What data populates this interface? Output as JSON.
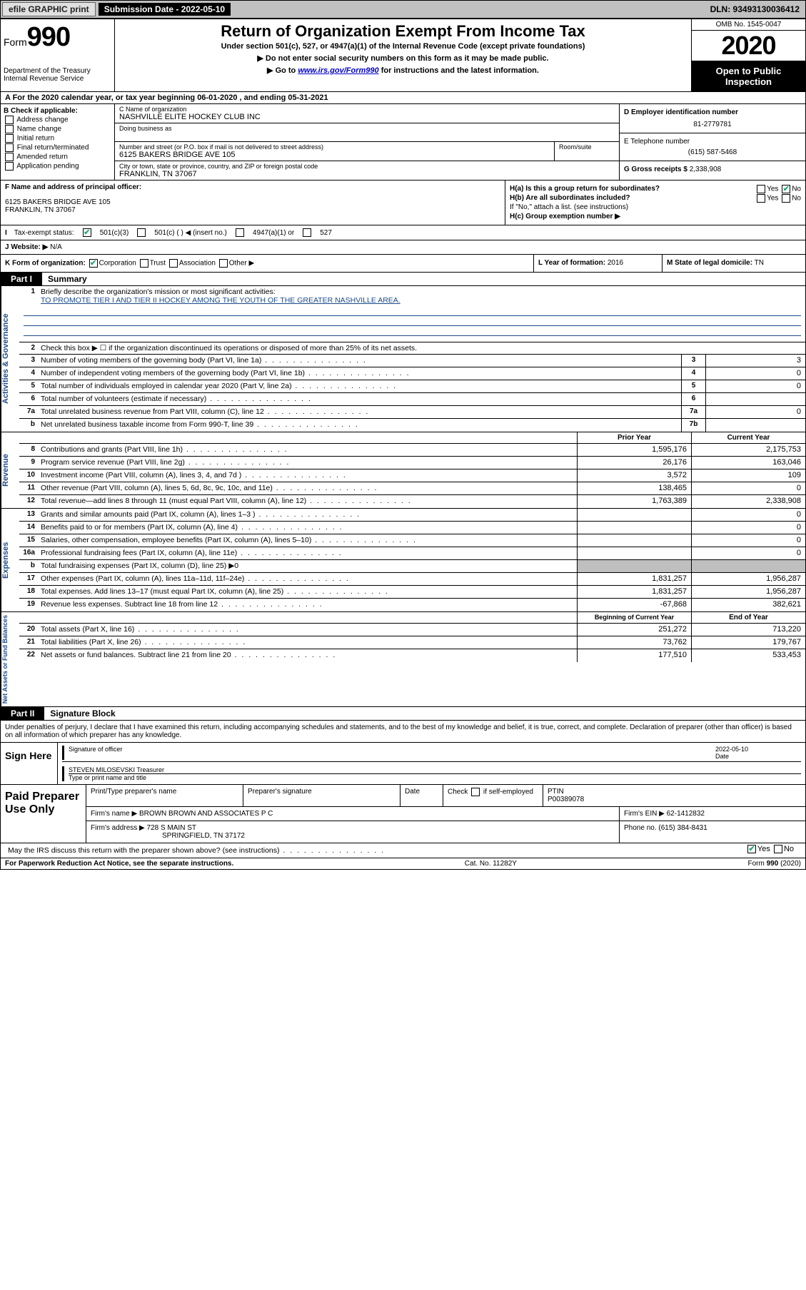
{
  "topbar": {
    "efile": "efile GRAPHIC print",
    "subdate_label": "Submission Date - 2022-05-10",
    "dln": "DLN: 93493130036412"
  },
  "header": {
    "form_label": "Form",
    "form_num": "990",
    "dept": "Department of the Treasury\nInternal Revenue Service",
    "title": "Return of Organization Exempt From Income Tax",
    "sub1": "Under section 501(c), 527, or 4947(a)(1) of the Internal Revenue Code (except private foundations)",
    "sub2": "▶ Do not enter social security numbers on this form as it may be made public.",
    "sub3_pre": "▶ Go to ",
    "sub3_link": "www.irs.gov/Form990",
    "sub3_post": " for instructions and the latest information.",
    "omb": "OMB No. 1545-0047",
    "year": "2020",
    "openpub": "Open to Public Inspection"
  },
  "rowA": "A For the 2020 calendar year, or tax year beginning 06-01-2020    , and ending 05-31-2021",
  "boxB": {
    "label": "B Check if applicable:",
    "opts": [
      "Address change",
      "Name change",
      "Initial return",
      "Final return/terminated",
      "Amended return",
      "Application pending"
    ]
  },
  "boxC": {
    "name_label": "C Name of organization",
    "name": "NASHVILLE ELITE HOCKEY CLUB INC",
    "dba_label": "Doing business as",
    "dba": "",
    "addr_label": "Number and street (or P.O. box if mail is not delivered to street address)",
    "room_label": "Room/suite",
    "addr": "6125 BAKERS BRIDGE AVE 105",
    "city_label": "City or town, state or province, country, and ZIP or foreign postal code",
    "city": "FRANKLIN, TN  37067"
  },
  "boxD": {
    "ein_label": "D Employer identification number",
    "ein": "81-2779781",
    "phone_label": "E Telephone number",
    "phone": "(615) 587-5468",
    "gross_label": "G Gross receipts $",
    "gross": "2,338,908"
  },
  "boxF": {
    "label": "F  Name and address of principal officer:",
    "addr1": "6125 BAKERS BRIDGE AVE 105",
    "addr2": "FRANKLIN, TN  37067"
  },
  "boxH": {
    "a": "H(a)  Is this a group return for subordinates?",
    "b": "H(b)  Are all subordinates included?",
    "bnote": "If \"No,\" attach a list. (see instructions)",
    "c": "H(c)  Group exemption number ▶",
    "yes": "Yes",
    "no": "No"
  },
  "rowI": {
    "label": "Tax-exempt status:",
    "o1": "501(c)(3)",
    "o2": "501(c) (   ) ◀ (insert no.)",
    "o3": "4947(a)(1) or",
    "o4": "527"
  },
  "rowJ": {
    "label": "J   Website: ▶",
    "val": "N/A"
  },
  "rowK": {
    "label": "K Form of organization:",
    "opts": [
      "Corporation",
      "Trust",
      "Association",
      "Other ▶"
    ],
    "l_label": "L Year of formation:",
    "l_val": "2016",
    "m_label": "M State of legal domicile:",
    "m_val": "TN"
  },
  "partI": {
    "tab": "Part I",
    "title": "Summary"
  },
  "summary": {
    "side1": "Activities & Governance",
    "side2": "Revenue",
    "side3": "Expenses",
    "side4": "Net Assets or Fund Balances",
    "l1_label": "Briefly describe the organization's mission or most significant activities:",
    "l1_val": "TO PROMOTE TIER I AND TIER II HOCKEY AMONG THE YOUTH OF THE GREATER NASHVILLE AREA.",
    "l2": "Check this box ▶ ☐  if the organization discontinued its operations or disposed of more than 25% of its net assets.",
    "l3": "Number of voting members of the governing body (Part VI, line 1a)",
    "l3v": "3",
    "l4": "Number of independent voting members of the governing body (Part VI, line 1b)",
    "l4v": "0",
    "l5": "Total number of individuals employed in calendar year 2020 (Part V, line 2a)",
    "l5v": "0",
    "l6": "Total number of volunteers (estimate if necessary)",
    "l6v": "",
    "l7a": "Total unrelated business revenue from Part VIII, column (C), line 12",
    "l7av": "0",
    "l7b": "Net unrelated business taxable income from Form 990-T, line 39",
    "l7bv": "",
    "hdr_prior": "Prior Year",
    "hdr_curr": "Current Year",
    "rows_rev": [
      {
        "n": "8",
        "t": "Contributions and grants (Part VIII, line 1h)",
        "p": "1,595,176",
        "c": "2,175,753"
      },
      {
        "n": "9",
        "t": "Program service revenue (Part VIII, line 2g)",
        "p": "26,176",
        "c": "163,046"
      },
      {
        "n": "10",
        "t": "Investment income (Part VIII, column (A), lines 3, 4, and 7d )",
        "p": "3,572",
        "c": "109"
      },
      {
        "n": "11",
        "t": "Other revenue (Part VIII, column (A), lines 5, 6d, 8c, 9c, 10c, and 11e)",
        "p": "138,465",
        "c": "0"
      },
      {
        "n": "12",
        "t": "Total revenue—add lines 8 through 11 (must equal Part VIII, column (A), line 12)",
        "p": "1,763,389",
        "c": "2,338,908"
      }
    ],
    "rows_exp": [
      {
        "n": "13",
        "t": "Grants and similar amounts paid (Part IX, column (A), lines 1–3 )",
        "p": "",
        "c": "0"
      },
      {
        "n": "14",
        "t": "Benefits paid to or for members (Part IX, column (A), line 4)",
        "p": "",
        "c": "0"
      },
      {
        "n": "15",
        "t": "Salaries, other compensation, employee benefits (Part IX, column (A), lines 5–10)",
        "p": "",
        "c": "0"
      },
      {
        "n": "16a",
        "t": "Professional fundraising fees (Part IX, column (A), line 11e)",
        "p": "",
        "c": "0"
      },
      {
        "n": "b",
        "t": "Total fundraising expenses (Part IX, column (D), line 25) ▶0",
        "p": "SHADE",
        "c": "SHADE"
      },
      {
        "n": "17",
        "t": "Other expenses (Part IX, column (A), lines 11a–11d, 11f–24e)",
        "p": "1,831,257",
        "c": "1,956,287"
      },
      {
        "n": "18",
        "t": "Total expenses. Add lines 13–17 (must equal Part IX, column (A), line 25)",
        "p": "1,831,257",
        "c": "1,956,287"
      },
      {
        "n": "19",
        "t": "Revenue less expenses. Subtract line 18 from line 12",
        "p": "-67,868",
        "c": "382,621"
      }
    ],
    "hdr_beg": "Beginning of Current Year",
    "hdr_end": "End of Year",
    "rows_na": [
      {
        "n": "20",
        "t": "Total assets (Part X, line 16)",
        "p": "251,272",
        "c": "713,220"
      },
      {
        "n": "21",
        "t": "Total liabilities (Part X, line 26)",
        "p": "73,762",
        "c": "179,767"
      },
      {
        "n": "22",
        "t": "Net assets or fund balances. Subtract line 21 from line 20",
        "p": "177,510",
        "c": "533,453"
      }
    ]
  },
  "partII": {
    "tab": "Part II",
    "title": "Signature Block"
  },
  "sig": {
    "pen": "Under penalties of perjury, I declare that I have examined this return, including accompanying schedules and statements, and to the best of my knowledge and belief, it is true, correct, and complete. Declaration of preparer (other than officer) is based on all information of which preparer has any knowledge.",
    "sign_here": "Sign Here",
    "sig_officer": "Signature of officer",
    "date_label": "Date",
    "date_val": "2022-05-10",
    "name": "STEVEN MILOSEVSKI Treasurer",
    "name_label": "Type or print name and title"
  },
  "prep": {
    "label": "Paid Preparer Use Only",
    "h1": "Print/Type preparer's name",
    "h2": "Preparer's signature",
    "h3": "Date",
    "h4_pre": "Check",
    "h4_post": "if self-employed",
    "h5": "PTIN",
    "ptin": "P00389078",
    "firm_label": "Firm's name    ▶",
    "firm": "BROWN BROWN AND ASSOCIATES P C",
    "ein_label": "Firm's EIN ▶",
    "ein": "62-1412832",
    "addr_label": "Firm's address ▶",
    "addr1": "728 S MAIN ST",
    "addr2": "SPRINGFIELD, TN  37172",
    "phone_label": "Phone no.",
    "phone": "(615) 384-8431"
  },
  "irs_q": "May the IRS discuss this return with the preparer shown above? (see instructions)",
  "footer": {
    "l": "For Paperwork Reduction Act Notice, see the separate instructions.",
    "m": "Cat. No. 11282Y",
    "r": "Form 990 (2020)"
  },
  "colors": {
    "link": "#0000cc",
    "side": "#1a4b8c",
    "shade": "#bfbfbf",
    "check": "#22aa55"
  }
}
